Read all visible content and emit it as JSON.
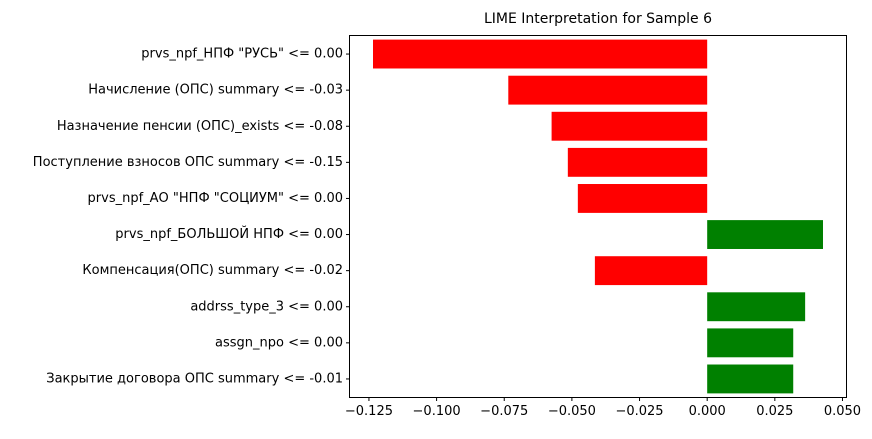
{
  "chart_data": {
    "type": "bar",
    "orientation": "horizontal",
    "title": "LIME Interpretation for Sample 6",
    "xlabel": "",
    "ylabel": "",
    "categories": [
      "prvs_npf_НПФ \"РУСЬ\" <= 0.00",
      "Начисление (ОПС) summary <= -0.03",
      "Назначение пенсии (ОПС)_exists <= -0.08",
      "Поступление взносов ОПС summary <= -0.15",
      "prvs_npf_АО \"НПФ \"СОЦИУМ\" <= 0.00",
      "prvs_npf_БОЛЬШОЙ НПФ <= 0.00",
      "Компенсация(ОПС) summary <= -0.02",
      "addrss_type_3 <= 0.00",
      "assgn_npo <= 0.00",
      "Закрытие договора ОПС summary <= -0.01"
    ],
    "values": [
      -0.1235,
      -0.0735,
      -0.0575,
      -0.0515,
      -0.0478,
      0.0428,
      -0.0415,
      0.0362,
      0.0318,
      0.0318
    ],
    "xlim": [
      -0.132,
      0.0513
    ],
    "xticks": [
      -0.125,
      -0.1,
      -0.075,
      -0.05,
      -0.025,
      0.0,
      0.025,
      0.05
    ],
    "xtick_labels": [
      "−0.125",
      "−0.100",
      "−0.075",
      "−0.050",
      "−0.025",
      "0.000",
      "0.025",
      "0.050"
    ],
    "colors": {
      "negative": "#ff0000",
      "positive": "#008000",
      "axis": "#000000"
    },
    "grid": false,
    "legend": "none"
  }
}
